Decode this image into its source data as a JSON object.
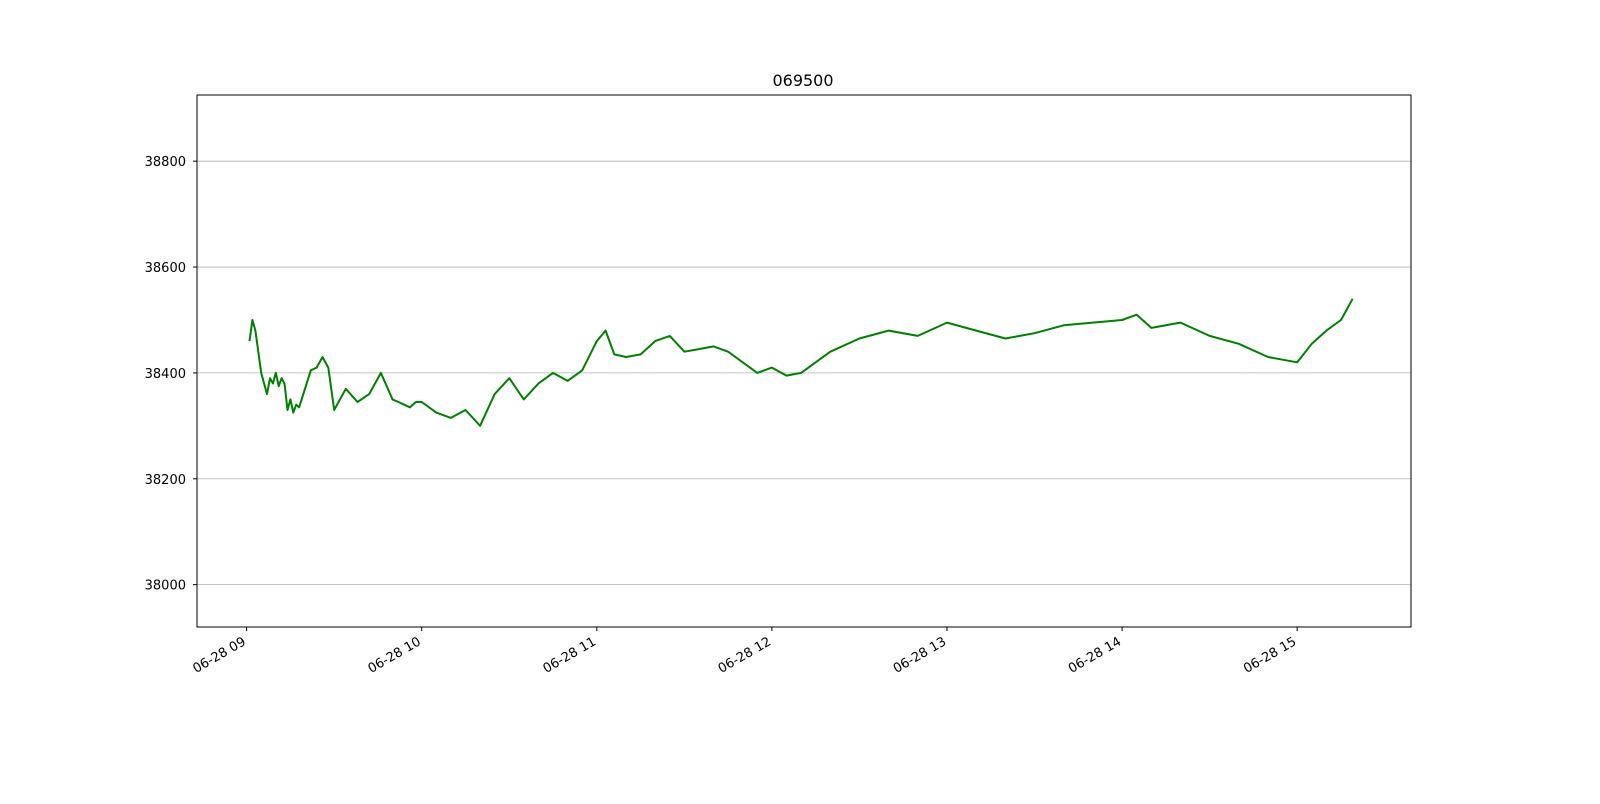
{
  "chart_data": {
    "type": "line",
    "title": "069500",
    "xlabel": "",
    "ylabel": "",
    "xlim": [
      "2024-06-28 08:43",
      "2024-06-28 15:39"
    ],
    "ylim": [
      37920,
      38925
    ],
    "grid": "horizontal",
    "x_ticks": [
      "06-28 09",
      "06-28 10",
      "06-28 11",
      "06-28 12",
      "06-28 13",
      "06-28 14",
      "06-28 15"
    ],
    "y_ticks": [
      "38000",
      "38200",
      "38400",
      "38600",
      "38800"
    ],
    "series": [
      {
        "color": "#008000",
        "x": [
          "09:01",
          "09:02",
          "09:03",
          "09:04",
          "09:05",
          "09:06",
          "09:07",
          "09:08",
          "09:09",
          "09:10",
          "09:11",
          "09:12",
          "09:13",
          "09:14",
          "09:15",
          "09:16",
          "09:17",
          "09:18",
          "09:20",
          "09:22",
          "09:24",
          "09:26",
          "09:28",
          "09:30",
          "09:34",
          "09:38",
          "09:42",
          "09:46",
          "09:50",
          "09:52",
          "09:54",
          "09:56",
          "09:58",
          "10:00",
          "10:05",
          "10:10",
          "10:15",
          "10:20",
          "10:25",
          "10:30",
          "10:35",
          "10:40",
          "10:45",
          "10:50",
          "10:55",
          "11:00",
          "11:03",
          "11:06",
          "11:10",
          "11:15",
          "11:20",
          "11:25",
          "11:30",
          "11:35",
          "11:40",
          "11:45",
          "11:50",
          "11:55",
          "12:00",
          "12:05",
          "12:10",
          "12:20",
          "12:30",
          "12:40",
          "12:50",
          "13:00",
          "13:10",
          "13:20",
          "13:30",
          "13:40",
          "13:50",
          "14:00",
          "14:05",
          "14:10",
          "14:20",
          "14:30",
          "14:40",
          "14:50",
          "14:55",
          "15:00",
          "15:05",
          "15:10",
          "15:15",
          "15:19"
        ],
        "y": [
          38460,
          38500,
          38480,
          38440,
          38400,
          38380,
          38360,
          38390,
          38380,
          38400,
          38375,
          38390,
          38380,
          38330,
          38350,
          38325,
          38340,
          38335,
          38370,
          38405,
          38410,
          38430,
          38410,
          38330,
          38370,
          38345,
          38360,
          38400,
          38350,
          38345,
          38340,
          38335,
          38345,
          38345,
          38325,
          38315,
          38330,
          38300,
          38360,
          38390,
          38350,
          38380,
          38400,
          38385,
          38405,
          38460,
          38480,
          38435,
          38430,
          38435,
          38460,
          38470,
          38440,
          38445,
          38450,
          38440,
          38420,
          38400,
          38410,
          38395,
          38400,
          38440,
          38465,
          38480,
          38470,
          38495,
          38480,
          38465,
          38475,
          38490,
          38495,
          38500,
          38510,
          38485,
          38495,
          38470,
          38455,
          38430,
          38425,
          38420,
          38455,
          38480,
          38500,
          38540
        ]
      }
    ]
  }
}
